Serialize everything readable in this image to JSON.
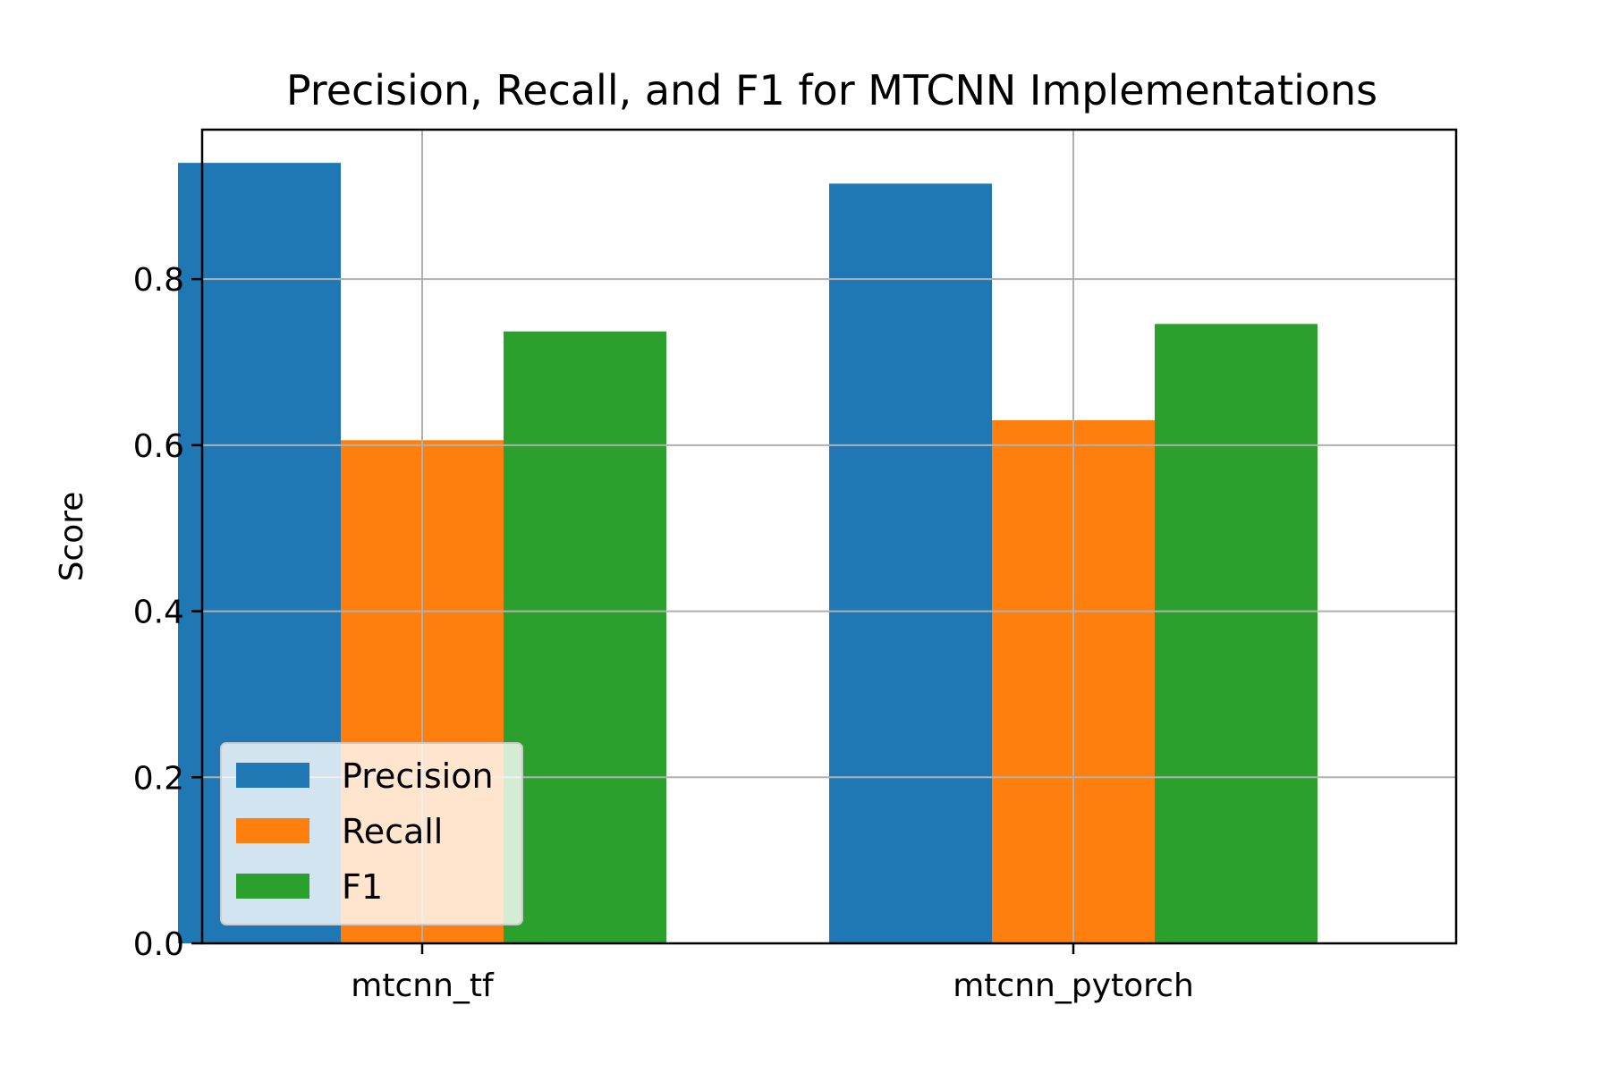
{
  "chart_data": {
    "type": "bar",
    "title": "Precision, Recall, and F1 for MTCNN Implementations",
    "xlabel": "",
    "ylabel": "Score",
    "categories": [
      "mtcnn_tf",
      "mtcnn_pytorch"
    ],
    "series": [
      {
        "name": "Precision",
        "values": [
          0.94,
          0.915
        ],
        "color": "#1f77b4"
      },
      {
        "name": "Recall",
        "values": [
          0.606,
          0.63
        ],
        "color": "#ff7f0e"
      },
      {
        "name": "F1",
        "values": [
          0.737,
          0.746
        ],
        "color": "#2ca02c"
      }
    ],
    "ylim": [
      0,
      0.98
    ],
    "yticks": [
      {
        "value": 0.0,
        "label": "0.0"
      },
      {
        "value": 0.2,
        "label": "0.2"
      },
      {
        "value": 0.4,
        "label": "0.4"
      },
      {
        "value": 0.6,
        "label": "0.6"
      },
      {
        "value": 0.8,
        "label": "0.8"
      }
    ],
    "grid": true,
    "legend_position": "lower-left"
  }
}
